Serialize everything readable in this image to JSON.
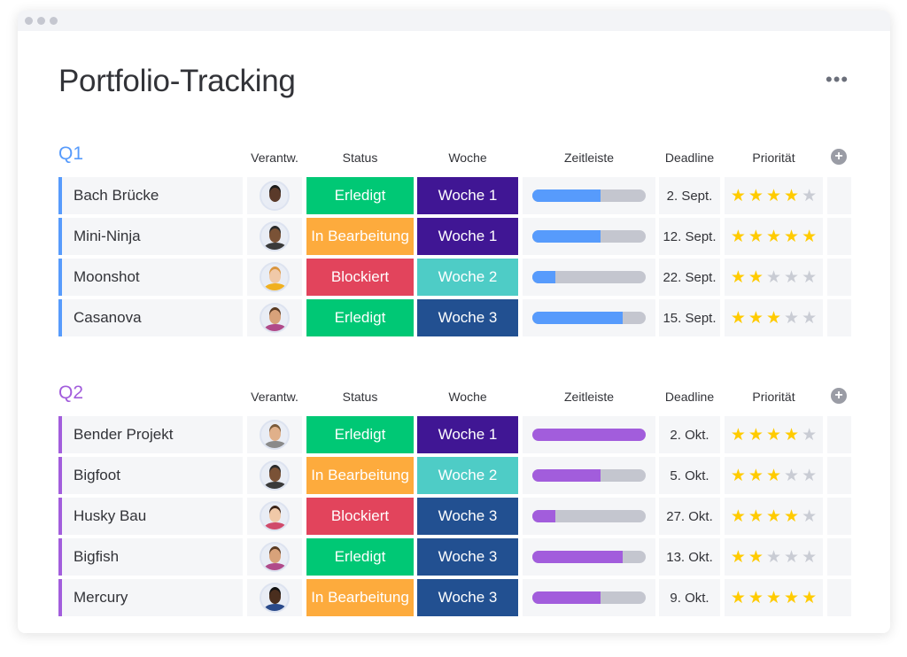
{
  "title": "Portfolio-Tracking",
  "more_icon": "ellipsis-icon",
  "columns": {
    "owner": "Verantw.",
    "status": "Status",
    "week": "Woche",
    "timeline": "Zeitleiste",
    "deadline": "Deadline",
    "priority": "Priorität"
  },
  "colors": {
    "done": "#00c875",
    "working": "#fdab3d",
    "stuck": "#e2445c",
    "w1": "#401694",
    "w2": "#4eccc6",
    "w3": "#225091",
    "q1": "#579bfc",
    "q2": "#a25ddc"
  },
  "groups": [
    {
      "name": "Q1",
      "color": "#579bfc",
      "rows": [
        {
          "name": "Bach Brücke",
          "status": "Erledigt",
          "status_color": "#00c875",
          "week": "Woche 1",
          "week_color": "#401694",
          "progress": 0.6,
          "deadline": "2. Sept.",
          "priority": 4,
          "avatar": {
            "skin": "#5a3a2a",
            "hair": "#1a1a1a",
            "shirt": "#e8ecf5"
          }
        },
        {
          "name": "Mini-Ninja",
          "status": "In Bearbeitung",
          "status_color": "#fdab3d",
          "week": "Woche 1",
          "week_color": "#401694",
          "progress": 0.6,
          "deadline": "12. Sept.",
          "priority": 5,
          "avatar": {
            "skin": "#7a5236",
            "hair": "#2a2a2a",
            "shirt": "#3a3a3a"
          }
        },
        {
          "name": "Moonshot",
          "status": "Blockiert",
          "status_color": "#e2445c",
          "week": "Woche 2",
          "week_color": "#4eccc6",
          "progress": 0.2,
          "deadline": "22. Sept.",
          "priority": 2,
          "avatar": {
            "skin": "#f0c9a8",
            "hair": "#d9953f",
            "shirt": "#f0b020"
          }
        },
        {
          "name": "Casanova",
          "status": "Erledigt",
          "status_color": "#00c875",
          "week": "Woche 3",
          "week_color": "#225091",
          "progress": 0.8,
          "deadline": "15. Sept.",
          "priority": 3,
          "avatar": {
            "skin": "#d8a27a",
            "hair": "#5a3a22",
            "shirt": "#b04a8a"
          }
        }
      ]
    },
    {
      "name": "Q2",
      "color": "#a25ddc",
      "rows": [
        {
          "name": "Bender Projekt",
          "status": "Erledigt",
          "status_color": "#00c875",
          "week": "Woche 1",
          "week_color": "#401694",
          "progress": 1.0,
          "deadline": "2. Okt.",
          "priority": 4,
          "avatar": {
            "skin": "#e0b08a",
            "hair": "#7a5a3a",
            "shirt": "#8a8a8a"
          }
        },
        {
          "name": "Bigfoot",
          "status": "In Bearbeitung",
          "status_color": "#fdab3d",
          "week": "Woche 2",
          "week_color": "#4eccc6",
          "progress": 0.6,
          "deadline": "5. Okt.",
          "priority": 3,
          "avatar": {
            "skin": "#7a5236",
            "hair": "#2a2a2a",
            "shirt": "#3a3a3a"
          }
        },
        {
          "name": "Husky Bau",
          "status": "Blockiert",
          "status_color": "#e2445c",
          "week": "Woche 3",
          "week_color": "#225091",
          "progress": 0.2,
          "deadline": "27. Okt.",
          "priority": 4,
          "avatar": {
            "skin": "#f0c9a8",
            "hair": "#3a2418",
            "shirt": "#d04a6a"
          }
        },
        {
          "name": "Bigfish",
          "status": "Erledigt",
          "status_color": "#00c875",
          "week": "Woche 3",
          "week_color": "#225091",
          "progress": 0.8,
          "deadline": "13. Okt.",
          "priority": 2,
          "avatar": {
            "skin": "#d8a27a",
            "hair": "#5a3a22",
            "shirt": "#b04a8a"
          }
        },
        {
          "name": "Mercury",
          "status": "In Bearbeitung",
          "status_color": "#fdab3d",
          "week": "Woche 3",
          "week_color": "#225091",
          "progress": 0.6,
          "deadline": "9. Okt.",
          "priority": 5,
          "avatar": {
            "skin": "#4a2e1e",
            "hair": "#111",
            "shirt": "#2a4a8a"
          }
        }
      ]
    }
  ]
}
